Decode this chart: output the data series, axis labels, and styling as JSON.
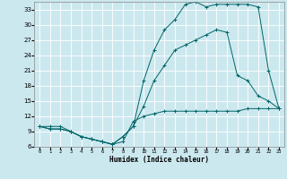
{
  "xlabel": "Humidex (Indice chaleur)",
  "ylabel": "",
  "bg_color": "#cce8ef",
  "grid_color": "#ffffff",
  "line_color": "#006666",
  "xlim": [
    -0.5,
    23.5
  ],
  "ylim": [
    6,
    34.5
  ],
  "xticks": [
    0,
    1,
    2,
    3,
    4,
    5,
    6,
    7,
    8,
    9,
    10,
    11,
    12,
    13,
    14,
    15,
    16,
    17,
    18,
    19,
    20,
    21,
    22,
    23
  ],
  "yticks": [
    6,
    9,
    12,
    15,
    18,
    21,
    24,
    27,
    30,
    33
  ],
  "line1_x": [
    0,
    1,
    2,
    3,
    4,
    5,
    6,
    7,
    8,
    9,
    10,
    11,
    12,
    13,
    14,
    15,
    16,
    17,
    18,
    19,
    20,
    21,
    22,
    23
  ],
  "line1_y": [
    10,
    10,
    10,
    9,
    8,
    7.5,
    7,
    6.5,
    7,
    11,
    12,
    12.5,
    13,
    13,
    13,
    13,
    13,
    13,
    13,
    13,
    13.5,
    13.5,
    13.5,
    13.5
  ],
  "line2_x": [
    0,
    1,
    2,
    3,
    4,
    5,
    6,
    7,
    8,
    9,
    10,
    11,
    12,
    13,
    14,
    15,
    16,
    17,
    18,
    19,
    20,
    21,
    22,
    23
  ],
  "line2_y": [
    10,
    9.5,
    9.5,
    9,
    8,
    7.5,
    7,
    6.5,
    8,
    10,
    14,
    19,
    22,
    25,
    26,
    27,
    28,
    29,
    28.5,
    20,
    19,
    16,
    15,
    13.5
  ],
  "line3_x": [
    0,
    1,
    2,
    3,
    4,
    5,
    6,
    7,
    8,
    9,
    10,
    11,
    12,
    13,
    14,
    15,
    16,
    17,
    18,
    19,
    20,
    21,
    22,
    23
  ],
  "line3_y": [
    10,
    9.5,
    9.5,
    9,
    8,
    7.5,
    7,
    6.5,
    8,
    10,
    19,
    25,
    29,
    31,
    34,
    34.5,
    33.5,
    34,
    34,
    34,
    34,
    33.5,
    21,
    13.5
  ]
}
